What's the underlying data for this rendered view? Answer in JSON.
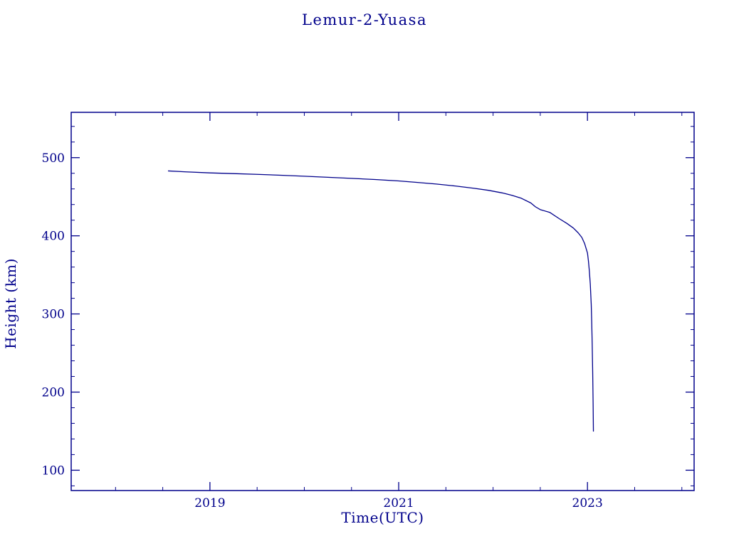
{
  "page": {
    "background": "#ffffff",
    "accent": "#00008b"
  },
  "chart_data": {
    "type": "line",
    "title": "Lemur-2-Yuasa",
    "xlabel": "Time(UTC)",
    "ylabel": "Height (km)",
    "xlim": [
      2017.53,
      2024.13
    ],
    "ylim": [
      74,
      558
    ],
    "x_major_ticks": [
      2019,
      2021,
      2023
    ],
    "x_tick_labels": [
      "2019",
      "2021",
      "2023"
    ],
    "x_minor_step": 0.5,
    "y_major_ticks": [
      100,
      200,
      300,
      400,
      500
    ],
    "y_tick_labels": [
      "100",
      "200",
      "300",
      "400",
      "500"
    ],
    "y_minor_step": 20,
    "grid": false,
    "legend": "none",
    "line_color": "#00008b",
    "series": [
      {
        "name": "Lemur-2-Yuasa orbital height (km)",
        "points": [
          [
            2018.56,
            483.0
          ],
          [
            2018.75,
            481.8
          ],
          [
            2019.0,
            480.5
          ],
          [
            2019.25,
            479.6
          ],
          [
            2019.5,
            478.6
          ],
          [
            2019.75,
            477.5
          ],
          [
            2020.0,
            476.2
          ],
          [
            2020.25,
            474.9
          ],
          [
            2020.5,
            473.5
          ],
          [
            2020.75,
            472.0
          ],
          [
            2021.0,
            470.2
          ],
          [
            2021.2,
            468.3
          ],
          [
            2021.4,
            466.2
          ],
          [
            2021.6,
            463.7
          ],
          [
            2021.8,
            460.8
          ],
          [
            2021.95,
            458.2
          ],
          [
            2022.1,
            454.8
          ],
          [
            2022.2,
            451.8
          ],
          [
            2022.3,
            448.0
          ],
          [
            2022.4,
            442.0
          ],
          [
            2022.45,
            437.0
          ],
          [
            2022.5,
            433.5
          ],
          [
            2022.6,
            430.0
          ],
          [
            2022.7,
            422.0
          ],
          [
            2022.78,
            416.0
          ],
          [
            2022.85,
            410.0
          ],
          [
            2022.9,
            404.0
          ],
          [
            2022.94,
            398.0
          ],
          [
            2022.97,
            390.0
          ],
          [
            2023.0,
            378.0
          ],
          [
            2023.01,
            368.0
          ],
          [
            2023.02,
            355.0
          ],
          [
            2023.03,
            338.0
          ],
          [
            2023.04,
            312.0
          ],
          [
            2023.045,
            290.0
          ],
          [
            2023.05,
            262.0
          ],
          [
            2023.055,
            228.0
          ],
          [
            2023.06,
            185.0
          ],
          [
            2023.063,
            150.0
          ]
        ]
      }
    ]
  }
}
